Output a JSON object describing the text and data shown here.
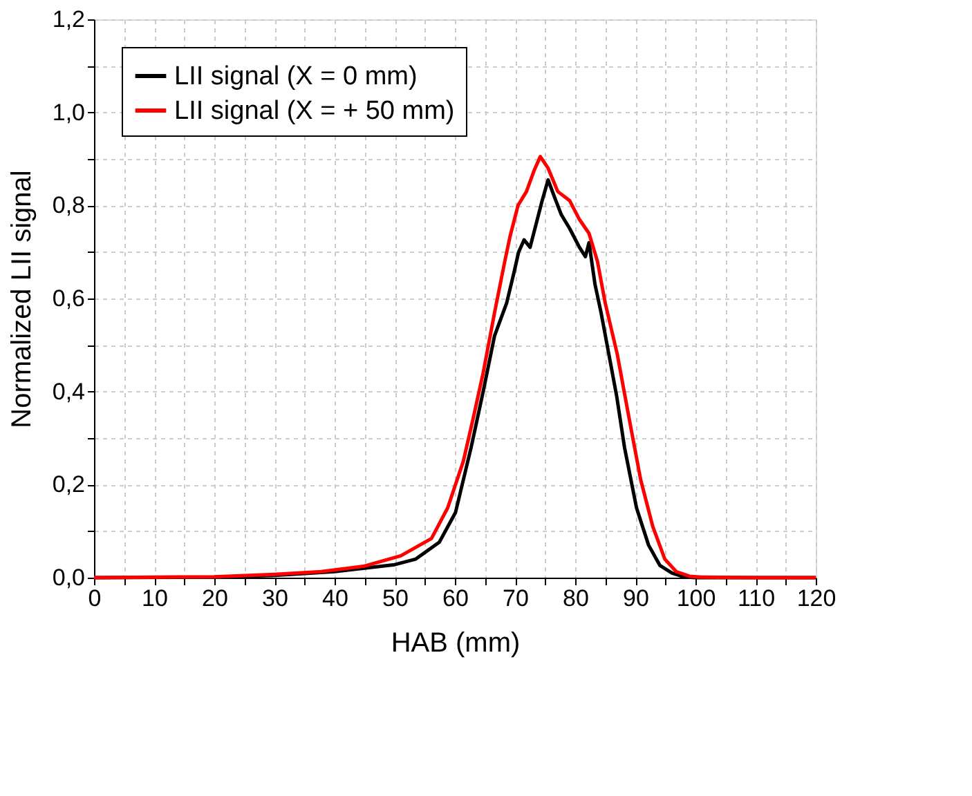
{
  "chart_data": {
    "type": "line",
    "xlabel": "HAB (mm)",
    "ylabel": "Normalized LII signal",
    "xlim": [
      0,
      120
    ],
    "ylim": [
      0,
      1.2
    ],
    "xticks": [
      0,
      {
        "value": 5,
        "label": null
      },
      10,
      {
        "value": 15,
        "label": null
      },
      20,
      {
        "value": 25,
        "label": null
      },
      30,
      {
        "value": 35,
        "label": null
      },
      40,
      {
        "value": 45,
        "label": null
      },
      50,
      {
        "value": 55,
        "label": null
      },
      60,
      {
        "value": 65,
        "label": null
      },
      70,
      {
        "value": 75,
        "label": null
      },
      80,
      {
        "value": 85,
        "label": null
      },
      90,
      {
        "value": 95,
        "label": null
      },
      100,
      {
        "value": 105,
        "label": null
      },
      110,
      {
        "value": 115,
        "label": null
      },
      120
    ],
    "yticks": [
      {
        "value": 0,
        "label": "0,0"
      },
      {
        "value": 0.1,
        "label": null
      },
      {
        "value": 0.2,
        "label": "0,2"
      },
      {
        "value": 0.3,
        "label": null
      },
      {
        "value": 0.4,
        "label": "0,4"
      },
      {
        "value": 0.5,
        "label": null
      },
      {
        "value": 0.6,
        "label": "0,6"
      },
      {
        "value": 0.7,
        "label": null
      },
      {
        "value": 0.8,
        "label": "0,8"
      },
      {
        "value": 0.9,
        "label": null
      },
      {
        "value": 1.0,
        "label": "1,0"
      },
      {
        "value": 1.1,
        "label": null
      },
      {
        "value": 1.2,
        "label": "1,2"
      }
    ],
    "grid": true,
    "legend": "top left",
    "line_style": "solid",
    "marker": "none",
    "series": [
      {
        "name": "LII signal (X = 0 mm)",
        "color": "#000000",
        "x": [
          0,
          20,
          30,
          40,
          50,
          53.5,
          57.4,
          60.1,
          62.7,
          64.7,
          66.6,
          68.6,
          69.9,
          70.6,
          71.5,
          72.5,
          73.5,
          74.5,
          75.5,
          76.5,
          77.7,
          79.1,
          80.7,
          81.7,
          82.3,
          83.3,
          84.3,
          85.6,
          86.9,
          88.2,
          90.2,
          92.2,
          94.1,
          96.1,
          98,
          100,
          110,
          120
        ],
        "values": [
          0,
          0.001,
          0.005,
          0.013,
          0.028,
          0.04,
          0.076,
          0.14,
          0.28,
          0.4,
          0.52,
          0.59,
          0.66,
          0.7,
          0.726,
          0.71,
          0.76,
          0.81,
          0.855,
          0.82,
          0.78,
          0.75,
          0.71,
          0.69,
          0.72,
          0.63,
          0.57,
          0.48,
          0.39,
          0.28,
          0.15,
          0.07,
          0.026,
          0.01,
          0.002,
          0,
          0,
          0
        ]
      },
      {
        "name": "LII signal (X = + 50 mm)",
        "color": "#ff0000",
        "x": [
          0,
          20,
          30,
          37.8,
          45,
          51,
          56.1,
          58.8,
          61.4,
          63,
          64.7,
          66.6,
          68.3,
          69.2,
          70.5,
          71.9,
          73.2,
          74.2,
          75.5,
          77.1,
          79.1,
          80.7,
          82.3,
          83.7,
          85,
          87,
          89,
          90.9,
          92.9,
          94.9,
          96.8,
          99,
          101,
          110,
          120
        ],
        "values": [
          0,
          0.002,
          0.007,
          0.013,
          0.025,
          0.047,
          0.084,
          0.15,
          0.25,
          0.34,
          0.44,
          0.57,
          0.68,
          0.735,
          0.8,
          0.83,
          0.876,
          0.905,
          0.88,
          0.83,
          0.81,
          0.77,
          0.74,
          0.68,
          0.59,
          0.48,
          0.34,
          0.21,
          0.11,
          0.04,
          0.013,
          0.003,
          0.001,
          0,
          0
        ]
      }
    ]
  }
}
